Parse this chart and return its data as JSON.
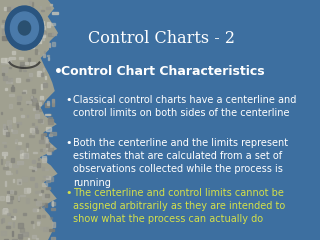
{
  "title": "Control Charts - 2",
  "background_color": "#3d6fa0",
  "title_color": "#ffffff",
  "title_fontsize": 11.5,
  "bullet1_text": "Control Chart Characteristics",
  "bullet1_color": "#ffffff",
  "bullet1_fontsize": 9.0,
  "subbullets": [
    {
      "text": "Classical control charts have a centerline and\ncontrol limits on both sides of the centerline",
      "color": "#ffffff",
      "fontsize": 7.0
    },
    {
      "text": "Both the centerline and the limits represent\nestimates that are calculated from a set of\nobservations collected while the process is\nrunning",
      "color": "#ffffff",
      "fontsize": 7.0
    },
    {
      "text": "The centerline and control limits cannot be\nassigned arbitrarily as they are intended to\nshow what the process can actually do",
      "color": "#d4e04a",
      "fontsize": 7.0
    }
  ],
  "stone_base_color": "#a0a090",
  "logo_outer_color": "#2a5580",
  "logo_inner_color": "#4a7aaa"
}
